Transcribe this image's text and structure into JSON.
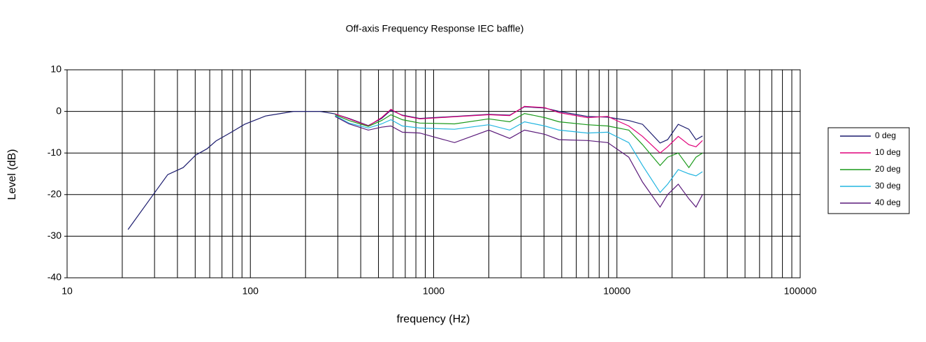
{
  "chart_data": {
    "type": "line",
    "title": "Off-axis Frequency Response IEC baffle)",
    "x_label": "frequency (Hz)",
    "y_label": "Level (dB)",
    "x_log": true,
    "grid": true,
    "legend": "right",
    "xlim": [
      10,
      100000
    ],
    "xticks": [
      10,
      100,
      1000,
      10000,
      100000
    ],
    "xgrid": [
      20,
      30,
      40,
      50,
      60,
      70,
      80,
      90,
      200,
      300,
      400,
      500,
      600,
      700,
      800,
      900,
      2000,
      3000,
      4000,
      5000,
      6000,
      7000,
      8000,
      9000,
      20000,
      30000,
      40000,
      50000,
      60000,
      70000,
      80000,
      90000
    ],
    "ylim": [
      -40,
      10
    ],
    "yticks": [
      10,
      0,
      -10,
      -20,
      -30,
      -40
    ],
    "series": [
      {
        "name": "0 deg",
        "color": "#1c1c6e",
        "x": [
          21.5,
          30.2,
          35.4,
          43,
          50.3,
          58,
          65,
          78,
          93,
          121,
          172,
          240,
          290,
          345,
          440,
          520,
          585,
          675,
          840,
          1300,
          2000,
          2600,
          3130,
          4040,
          4830,
          6900,
          8900,
          11600,
          13800,
          17200,
          18900,
          21600,
          24700,
          27000,
          29300
        ],
        "values": [
          -28.4,
          -19.4,
          -15.2,
          -13.5,
          -10.5,
          -9,
          -7.1,
          -5.1,
          -3.1,
          -1.1,
          0,
          0,
          -0.6,
          -1.7,
          -3.4,
          -1.7,
          0.3,
          -0.9,
          -1.7,
          -1.2,
          -0.7,
          -0.9,
          1.1,
          0.8,
          0,
          -1.2,
          -1.4,
          -2.2,
          -3.1,
          -7.6,
          -6.8,
          -3.1,
          -4.3,
          -6.8,
          -5.9
        ]
      },
      {
        "name": "10 deg",
        "color": "#e0007a",
        "x": [
          290,
          345,
          440,
          520,
          585,
          675,
          840,
          1300,
          2000,
          2600,
          3130,
          4040,
          4830,
          6900,
          8900,
          11600,
          13800,
          17200,
          18900,
          21600,
          24700,
          27000,
          29300
        ],
        "values": [
          -0.6,
          -1.8,
          -3.5,
          -1.5,
          0.5,
          -1,
          -1.8,
          -1.3,
          -0.8,
          -1,
          1.2,
          0.9,
          -0.3,
          -1.5,
          -1.2,
          -3.5,
          -6,
          -10,
          -8.5,
          -6,
          -8,
          -8.5,
          -7
        ]
      },
      {
        "name": "20 deg",
        "color": "#1a9a1a",
        "x": [
          290,
          345,
          440,
          520,
          585,
          675,
          840,
          1300,
          2000,
          2600,
          3130,
          4040,
          4830,
          6900,
          8900,
          11600,
          13800,
          17200,
          18900,
          21600,
          24700,
          27000,
          29300
        ],
        "values": [
          -0.8,
          -2.2,
          -3.6,
          -2.2,
          -0.8,
          -2,
          -2.8,
          -3,
          -1.8,
          -2.5,
          -0.5,
          -1.5,
          -2.5,
          -3.2,
          -3.5,
          -4.5,
          -8,
          -13,
          -11,
          -10,
          -13.5,
          -11,
          -10
        ]
      },
      {
        "name": "30 deg",
        "color": "#22b5e0",
        "x": [
          290,
          345,
          440,
          520,
          585,
          675,
          840,
          1300,
          2000,
          2600,
          3130,
          4040,
          4830,
          6900,
          8900,
          11600,
          13800,
          17200,
          18900,
          21600,
          24700,
          27000,
          29300
        ],
        "values": [
          -1,
          -2.8,
          -4,
          -3,
          -2,
          -3.5,
          -4,
          -4.3,
          -3.2,
          -4.5,
          -2.5,
          -3.5,
          -4.5,
          -5.2,
          -5,
          -7.5,
          -13,
          -19.5,
          -17.5,
          -14,
          -15,
          -15.5,
          -14.5
        ]
      },
      {
        "name": "40 deg",
        "color": "#5a1a7a",
        "x": [
          290,
          345,
          440,
          520,
          585,
          675,
          840,
          1300,
          2000,
          2600,
          3130,
          4040,
          4830,
          6900,
          8900,
          11600,
          13800,
          17200,
          18900,
          21600,
          24700,
          27000,
          29300
        ],
        "values": [
          -1.2,
          -3,
          -4.5,
          -3.8,
          -3.5,
          -5,
          -5.2,
          -7.5,
          -4.5,
          -6.5,
          -4.5,
          -5.5,
          -6.8,
          -7,
          -7.5,
          -11,
          -17,
          -23,
          -20,
          -17.5,
          -21,
          -23,
          -20
        ]
      }
    ]
  }
}
